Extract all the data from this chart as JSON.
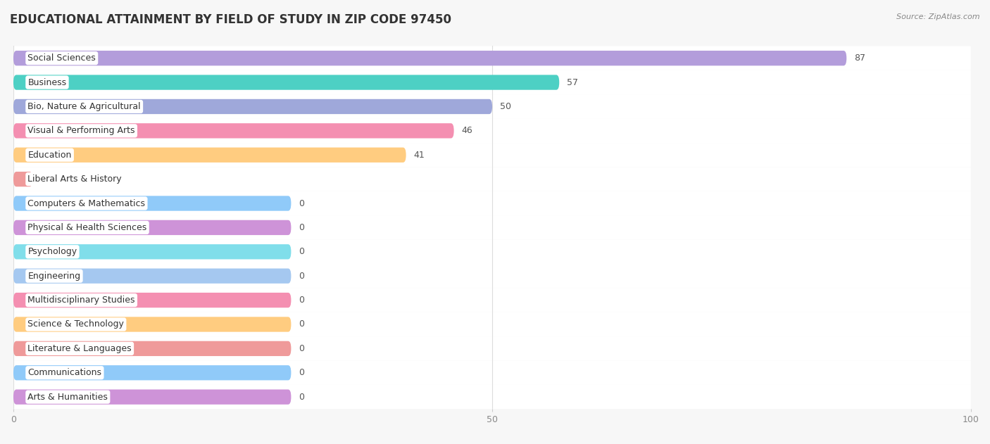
{
  "title": "EDUCATIONAL ATTAINMENT BY FIELD OF STUDY IN ZIP CODE 97450",
  "source": "Source: ZipAtlas.com",
  "categories": [
    "Social Sciences",
    "Business",
    "Bio, Nature & Agricultural",
    "Visual & Performing Arts",
    "Education",
    "Liberal Arts & History",
    "Computers & Mathematics",
    "Physical & Health Sciences",
    "Psychology",
    "Engineering",
    "Multidisciplinary Studies",
    "Science & Technology",
    "Literature & Languages",
    "Communications",
    "Arts & Humanities"
  ],
  "values": [
    87,
    57,
    50,
    46,
    41,
    2,
    0,
    0,
    0,
    0,
    0,
    0,
    0,
    0,
    0
  ],
  "colors": [
    "#b39ddb",
    "#4dd0c4",
    "#9fa8da",
    "#f48fb1",
    "#ffcc80",
    "#ef9a9a",
    "#90caf9",
    "#ce93d8",
    "#80deea",
    "#a5c8f0",
    "#f48fb1",
    "#ffcc80",
    "#ef9a9a",
    "#90caf9",
    "#ce93d8"
  ],
  "xlim": [
    0,
    100
  ],
  "background_color": "#f7f7f7",
  "row_bg_color": "#ffffff",
  "title_fontsize": 12,
  "label_fontsize": 9,
  "value_fontsize": 9,
  "bar_height": 0.62,
  "zero_bar_width": 29
}
